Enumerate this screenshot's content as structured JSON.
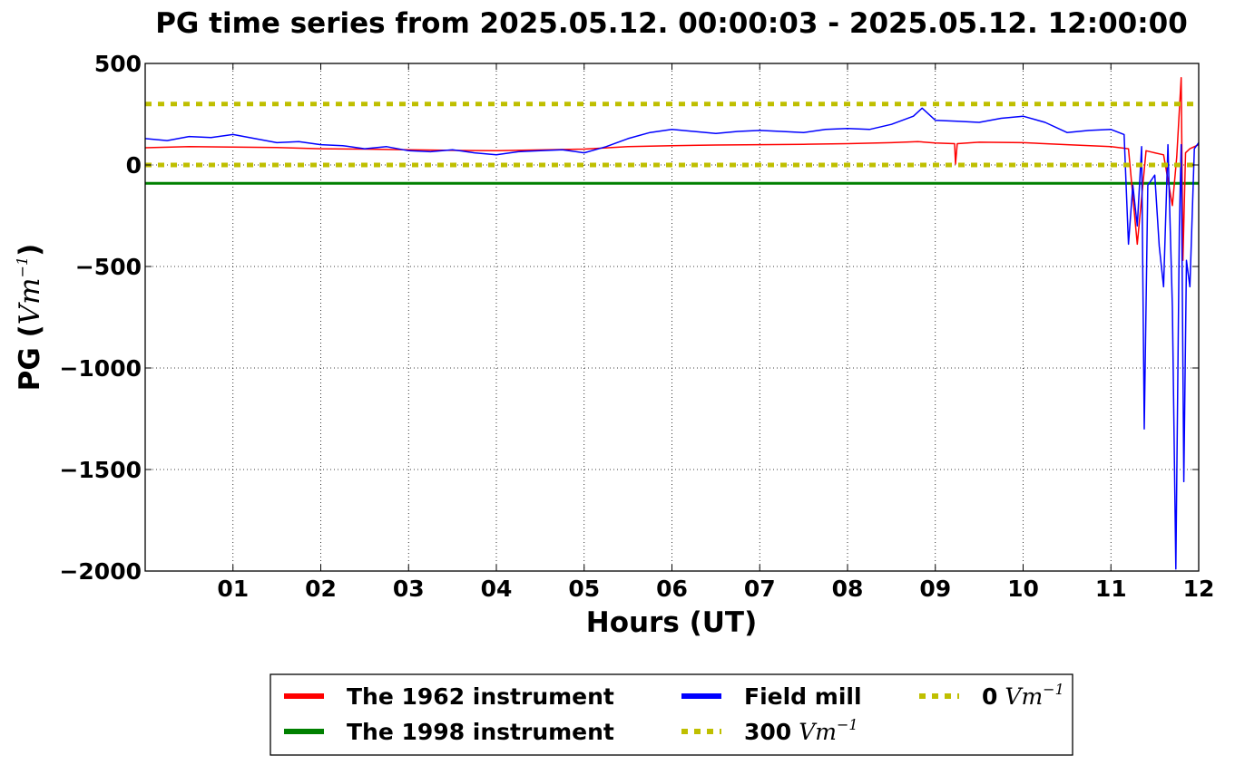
{
  "chart_data": {
    "type": "line",
    "title": "PG time series from 2025.05.12. 00:00:03 - 2025.05.12. 12:00:00",
    "xlabel": "Hours (UT)",
    "ylabel": {
      "prefix": "PG (",
      "unit_base": "Vm",
      "unit_exp": "−1",
      "suffix": ")"
    },
    "xlim": [
      0,
      12
    ],
    "ylim": [
      -2000,
      500
    ],
    "x_ticks": [
      1,
      2,
      3,
      4,
      5,
      6,
      7,
      8,
      9,
      10,
      11,
      12
    ],
    "x_tick_labels": [
      "01",
      "02",
      "03",
      "04",
      "05",
      "06",
      "07",
      "08",
      "09",
      "10",
      "11",
      "12"
    ],
    "y_ticks": [
      500,
      0,
      -500,
      -1000,
      -1500,
      -2000
    ],
    "y_tick_labels": [
      "500",
      "0",
      "−500",
      "−1000",
      "−1500",
      "−2000"
    ],
    "grid": true,
    "legend_position": "bottom",
    "series": [
      {
        "name": "The 1962 instrument",
        "color": "#ff0000",
        "x": [
          0,
          0.5,
          1,
          1.5,
          2,
          2.5,
          3,
          3.5,
          4,
          4.5,
          5,
          5.5,
          6,
          6.5,
          7,
          7.5,
          8,
          8.5,
          8.8,
          9,
          9.22,
          9.23,
          9.25,
          9.5,
          10,
          10.5,
          11,
          11.2,
          11.3,
          11.4,
          11.5,
          11.6,
          11.7,
          11.75,
          11.8,
          11.82,
          11.85,
          11.9,
          12
        ],
        "y": [
          85,
          90,
          88,
          86,
          80,
          78,
          75,
          72,
          70,
          74,
          78,
          90,
          95,
          98,
          100,
          102,
          105,
          110,
          115,
          108,
          105,
          5,
          105,
          112,
          110,
          100,
          90,
          80,
          -390,
          70,
          60,
          50,
          -200,
          40,
          430,
          -470,
          60,
          80,
          100
        ]
      },
      {
        "name": "The 1998 instrument",
        "color": "#008000",
        "x": [
          0,
          12
        ],
        "y": [
          -90,
          -90
        ]
      },
      {
        "name": "Field mill",
        "color": "#0000ff",
        "x": [
          0,
          0.25,
          0.5,
          0.75,
          1,
          1.25,
          1.5,
          1.75,
          2,
          2.25,
          2.5,
          2.75,
          3,
          3.25,
          3.5,
          3.75,
          4,
          4.25,
          4.5,
          4.75,
          5,
          5.25,
          5.5,
          5.75,
          6,
          6.25,
          6.5,
          6.75,
          7,
          7.25,
          7.5,
          7.75,
          8,
          8.25,
          8.5,
          8.75,
          8.85,
          9,
          9.25,
          9.5,
          9.75,
          10,
          10.25,
          10.5,
          10.75,
          11,
          11.15,
          11.2,
          11.25,
          11.3,
          11.35,
          11.38,
          11.42,
          11.5,
          11.55,
          11.6,
          11.65,
          11.7,
          11.74,
          11.78,
          11.8,
          11.83,
          11.86,
          11.9,
          11.95,
          12
        ],
        "y": [
          130,
          120,
          140,
          135,
          150,
          130,
          110,
          115,
          100,
          95,
          80,
          90,
          70,
          65,
          75,
          60,
          50,
          65,
          70,
          75,
          60,
          90,
          130,
          160,
          175,
          165,
          155,
          165,
          170,
          165,
          160,
          175,
          180,
          175,
          200,
          240,
          280,
          220,
          215,
          210,
          230,
          240,
          210,
          160,
          170,
          175,
          150,
          -390,
          -100,
          -300,
          90,
          -1300,
          -100,
          -50,
          -400,
          -600,
          100,
          -700,
          -1990,
          -300,
          100,
          -1560,
          -470,
          -600,
          80,
          110
        ]
      },
      {
        "name": "300 Vm−1",
        "label_value": "300",
        "label_unit": "Vm",
        "label_exp": "−1",
        "color": "#bfbf00",
        "style": "dotted",
        "x": [
          0,
          12
        ],
        "y": [
          300,
          300
        ]
      },
      {
        "name": "0 Vm−1",
        "label_value": "0",
        "label_unit": "Vm",
        "label_exp": "−1",
        "color": "#bfbf00",
        "style": "dotted",
        "x": [
          0,
          12
        ],
        "y": [
          0,
          0
        ]
      }
    ]
  }
}
